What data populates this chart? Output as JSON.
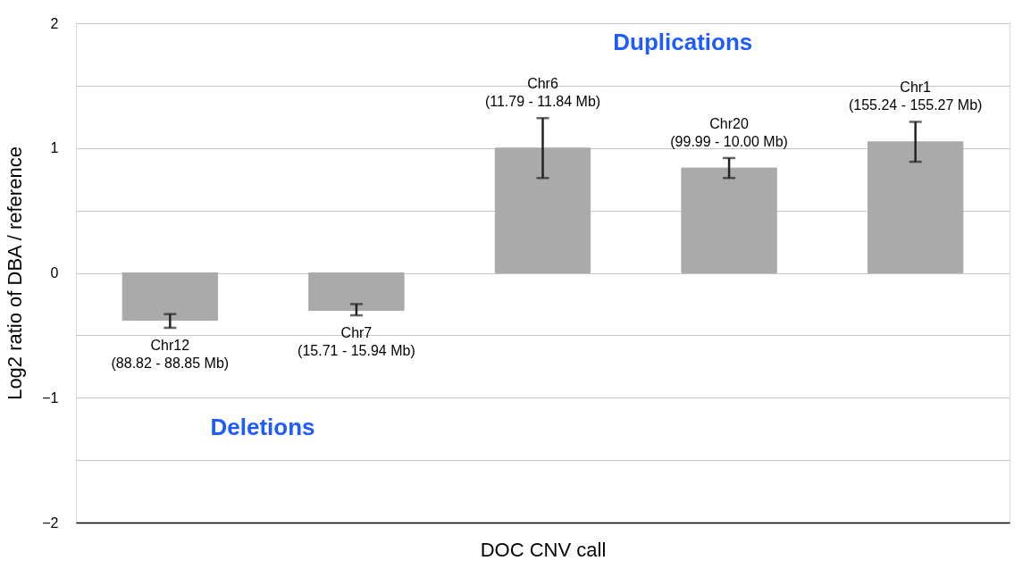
{
  "chart_data": {
    "type": "bar",
    "categories": [
      "Chr12\n(88.82 - 88.85 Mb)",
      "Chr7\n(15.71 - 15.94 Mb)",
      "Chr6\n(11.79 - 11.84 Mb)",
      "Chr20\n(99.99 - 10.00 Mb)",
      "Chr1\n(155.24 - 155.27 Mb)"
    ],
    "values": [
      -0.38,
      -0.3,
      1.0,
      0.84,
      1.05
    ],
    "errors": [
      [
        -0.44,
        -0.33
      ],
      [
        -0.34,
        -0.25
      ],
      [
        0.76,
        1.24
      ],
      [
        0.76,
        0.92
      ],
      [
        0.89,
        1.21
      ]
    ],
    "color": "#aaaaaa",
    "xlabel": "DOC CNV call",
    "ylabel": "Log2 ratio of DBA / reference",
    "ylim": [
      -2,
      2
    ],
    "yticks": [
      -2,
      {
        "value": -1.5,
        "label": null
      },
      -1,
      {
        "value": -0.5,
        "label": null
      },
      0,
      {
        "value": 0.5,
        "label": null
      },
      1,
      {
        "value": 1.5,
        "label": null
      },
      2
    ],
    "grid": "y",
    "tick_labels": "y",
    "annotations": [
      "Duplications",
      "Deletions"
    ]
  }
}
